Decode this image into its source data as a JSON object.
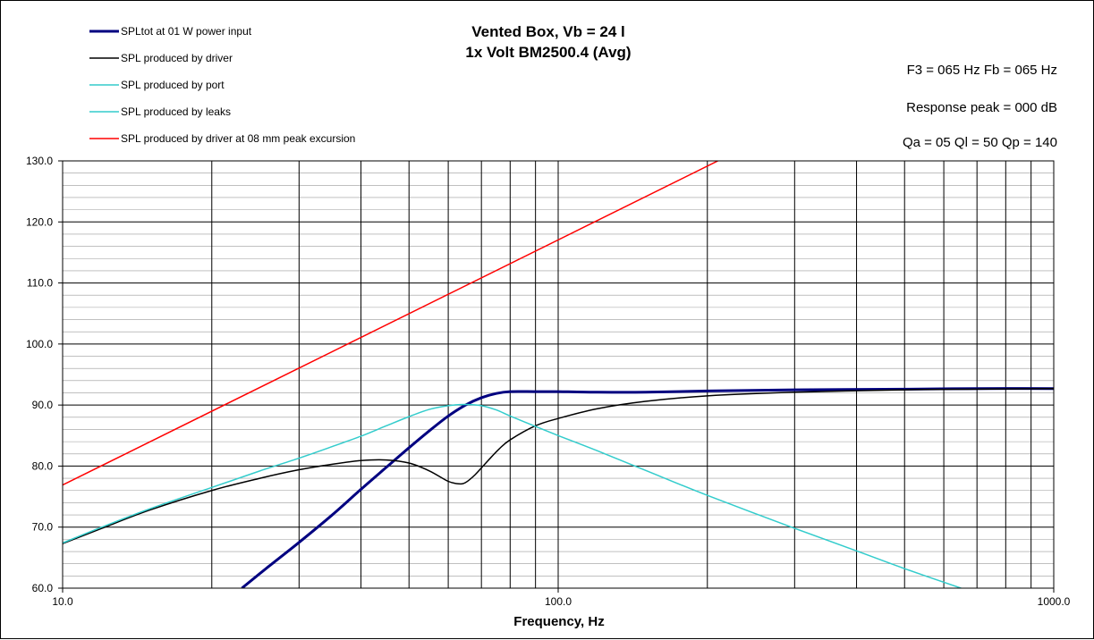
{
  "chart_data": {
    "type": "line",
    "title": [
      "Vented Box, Vb = 24 l",
      "1x Volt BM2500.4 (Avg)"
    ],
    "info_lines": [
      "F3 = 065 Hz  Fb = 065 Hz",
      "Response  peak = 000 dB",
      "Qa = 05  Ql = 50  Qp = 140"
    ],
    "xlabel": "Frequency, Hz",
    "ylabel": "",
    "x_scale": "log",
    "xlim": [
      10,
      1000
    ],
    "ylim": [
      60,
      130
    ],
    "x_ticks": [
      10,
      100,
      1000
    ],
    "x_tick_labels": [
      "10.0",
      "100.0",
      "1000.0"
    ],
    "y_ticks": [
      60,
      70,
      80,
      90,
      100,
      110,
      120,
      130
    ],
    "y_tick_labels": [
      "60.0",
      "70.0",
      "80.0",
      "90.0",
      "100.0",
      "110.0",
      "120.0",
      "130.0"
    ],
    "grid": true,
    "legend_position": "top-left",
    "series": [
      {
        "name": "SPLtot at 01 W power input",
        "color": "#000080",
        "width": 3,
        "x": [
          23,
          26,
          30,
          35,
          40,
          45,
          50,
          55,
          60,
          65,
          70,
          75,
          80,
          90,
          100,
          120,
          150,
          200,
          300,
          500,
          700,
          1000
        ],
        "y": [
          60,
          63.5,
          67.5,
          72,
          76.2,
          79.8,
          83,
          85.8,
          88.2,
          90,
          91.2,
          91.9,
          92.2,
          92.2,
          92.2,
          92.1,
          92.1,
          92.3,
          92.5,
          92.6,
          92.7,
          92.7
        ]
      },
      {
        "name": "SPL produced by driver",
        "color": "#000000",
        "width": 1.5,
        "x": [
          10,
          12,
          15,
          20,
          25,
          30,
          35,
          40,
          45,
          50,
          55,
          60,
          63,
          65,
          68,
          72,
          76,
          80,
          90,
          100,
          120,
          150,
          200,
          300,
          500,
          700,
          1000
        ],
        "y": [
          67.3,
          69.8,
          72.8,
          76,
          78,
          79.4,
          80.3,
          80.9,
          81,
          80.5,
          79.2,
          77.5,
          77.1,
          77.3,
          78.6,
          80.8,
          82.8,
          84.3,
          86.6,
          87.8,
          89.4,
          90.6,
          91.5,
          92.1,
          92.5,
          92.6,
          92.7
        ]
      },
      {
        "name": "SPL produced by port",
        "color": "#33CCCC",
        "width": 1.5,
        "x": [
          10,
          12,
          15,
          20,
          25,
          30,
          35,
          40,
          45,
          50,
          55,
          60,
          65,
          70,
          75,
          80,
          90,
          100,
          120,
          150,
          200,
          300,
          400,
          500,
          650
        ],
        "y": [
          67.4,
          70,
          73,
          76.5,
          79.2,
          81.3,
          83.2,
          84.9,
          86.6,
          88.1,
          89.3,
          89.9,
          90.1,
          89.9,
          89.2,
          88.2,
          86.5,
          85,
          82.5,
          79.3,
          75.2,
          69.8,
          66.1,
          63.2,
          60
        ]
      },
      {
        "name": "SPL produced by leaks",
        "color": "#33CCCC",
        "width": 1.5,
        "x": [],
        "y": []
      },
      {
        "name": "SPL produced by driver at 08 mm peak excursion",
        "color": "#FF0000",
        "width": 1.5,
        "x": [
          10,
          210
        ],
        "y": [
          76.9,
          130
        ]
      }
    ]
  }
}
